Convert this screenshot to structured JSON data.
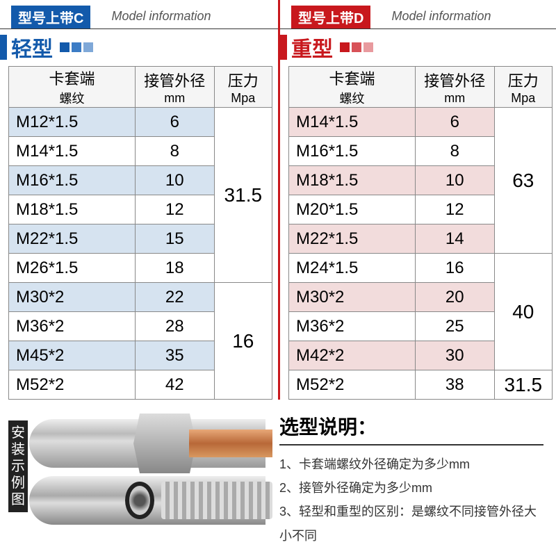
{
  "left": {
    "badge": "型号上带C",
    "badge_bg": "#135aab",
    "model_info": "Model information",
    "type_label": "轻型",
    "type_color": "#135aab",
    "squares": [
      "#135aab",
      "#3c7cc5",
      "#7fa8d8"
    ],
    "headers": {
      "col1_main": "卡套端",
      "col1_sub": "螺纹",
      "col2_main": "接管外径",
      "col2_sub": "mm",
      "col3_main": "压力",
      "col3_sub": "Mpa"
    },
    "alt_row_bg": "#d6e3f0",
    "rows": [
      {
        "thread": "M12*1.5",
        "od": "6"
      },
      {
        "thread": "M14*1.5",
        "od": "8"
      },
      {
        "thread": "M16*1.5",
        "od": "10"
      },
      {
        "thread": "M18*1.5",
        "od": "12"
      },
      {
        "thread": "M22*1.5",
        "od": "15"
      },
      {
        "thread": "M26*1.5",
        "od": "18"
      },
      {
        "thread": "M30*2",
        "od": "22"
      },
      {
        "thread": "M36*2",
        "od": "28"
      },
      {
        "thread": "M45*2",
        "od": "35"
      },
      {
        "thread": "M52*2",
        "od": "42"
      }
    ],
    "pressure_groups": [
      {
        "value": "31.5",
        "span": 6
      },
      {
        "value": "16",
        "span": 4
      }
    ]
  },
  "right": {
    "badge": "型号上带D",
    "badge_bg": "#c8181d",
    "model_info": "Model information",
    "type_label": "重型",
    "type_color": "#c8181d",
    "squares": [
      "#c8181d",
      "#d85258",
      "#e89a9e"
    ],
    "headers": {
      "col1_main": "卡套端",
      "col1_sub": "螺纹",
      "col2_main": "接管外径",
      "col2_sub": "mm",
      "col3_main": "压力",
      "col3_sub": "Mpa"
    },
    "alt_row_bg": "#f2dcdc",
    "rows": [
      {
        "thread": "M14*1.5",
        "od": "6"
      },
      {
        "thread": "M16*1.5",
        "od": "8"
      },
      {
        "thread": "M18*1.5",
        "od": "10"
      },
      {
        "thread": "M20*1.5",
        "od": "12"
      },
      {
        "thread": "M22*1.5",
        "od": "14"
      },
      {
        "thread": "M24*1.5",
        "od": "16"
      },
      {
        "thread": "M30*2",
        "od": "20"
      },
      {
        "thread": "M36*2",
        "od": "25"
      },
      {
        "thread": "M42*2",
        "od": "30"
      },
      {
        "thread": "M52*2",
        "od": "38"
      }
    ],
    "pressure_groups": [
      {
        "value": "63",
        "span": 5
      },
      {
        "value": "40",
        "span": 4
      },
      {
        "value": "31.5",
        "span": 1
      }
    ]
  },
  "install_label": "安装示例图",
  "selection": {
    "title": "选型说明：",
    "items": [
      "1、卡套端螺纹外径确定为多少mm",
      "2、接管外径确定为多少mm",
      "3、轻型和重型的区别：是螺纹不同接管外径大小不同"
    ]
  },
  "col_widths": {
    "c1": "48%",
    "c2": "30%",
    "c3": "22%"
  }
}
